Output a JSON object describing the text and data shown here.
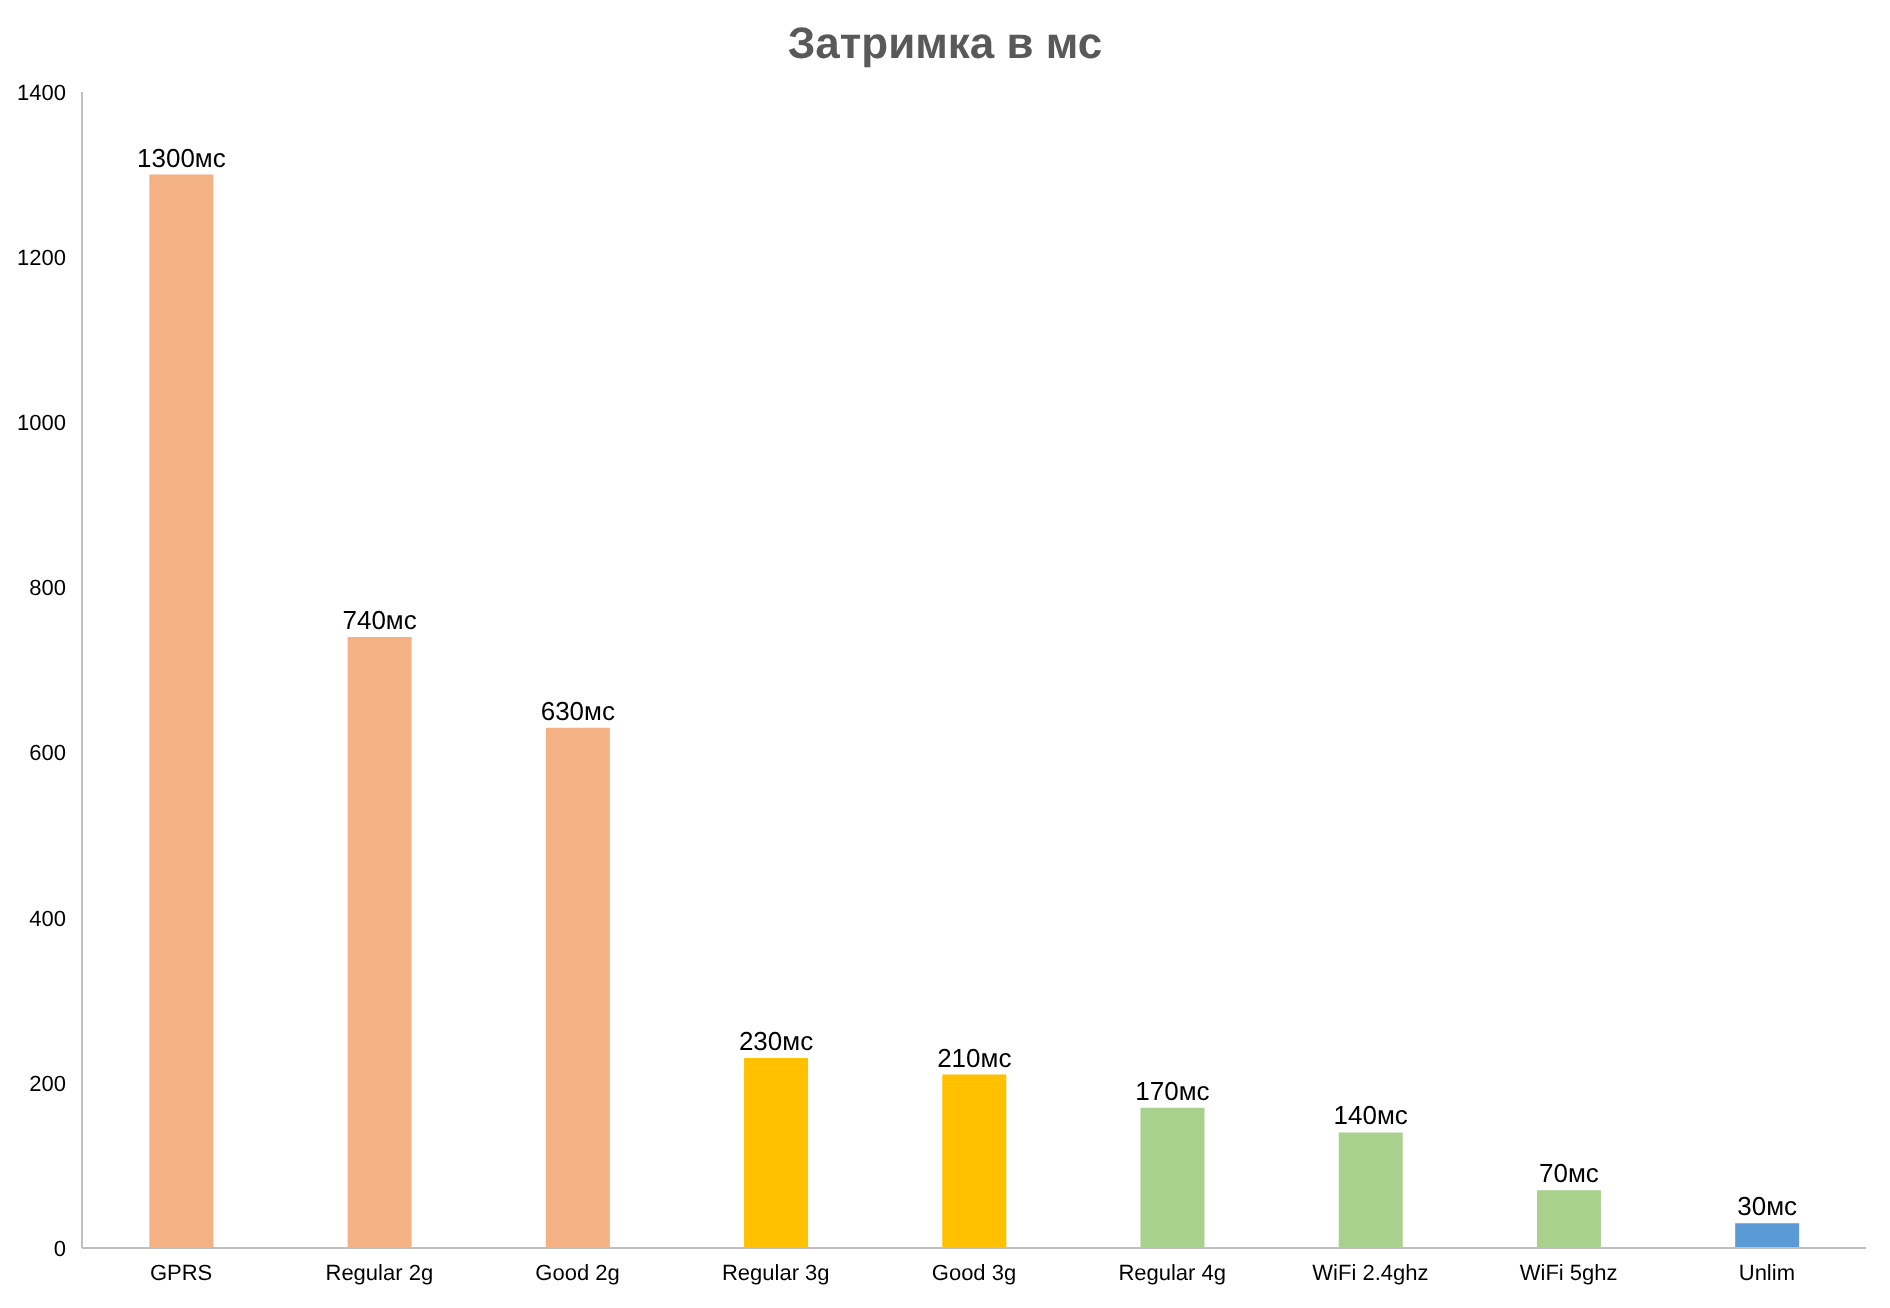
{
  "chart_data": {
    "type": "bar",
    "title": "Затримка в мс",
    "categories": [
      "GPRS",
      "Regular 2g",
      "Good 2g",
      "Regular 3g",
      "Good 3g",
      "Regular 4g",
      "WiFi 2.4ghz",
      "WiFi 5ghz",
      "Unlim"
    ],
    "values": [
      1300,
      740,
      630,
      230,
      210,
      170,
      140,
      70,
      30
    ],
    "value_labels": [
      "1300мс",
      "740мс",
      "630мс",
      "230мс",
      "210мс",
      "170мс",
      "140мс",
      "70мс",
      "30мс"
    ],
    "colors": [
      "#f4b183",
      "#f4b183",
      "#f4b183",
      "#ffc000",
      "#ffc000",
      "#a9d18e",
      "#a9d18e",
      "#a9d18e",
      "#5b9bd5"
    ],
    "ylim": [
      0,
      1400
    ],
    "yticks": [
      0,
      200,
      400,
      600,
      800,
      1000,
      1200,
      1400
    ],
    "grid": false
  }
}
